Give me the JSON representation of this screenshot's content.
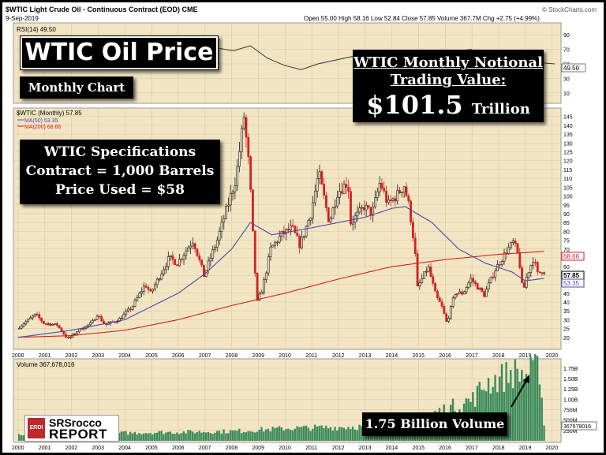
{
  "header": {
    "symbol_line": "$WTIC Light Crude Oil - Continuous Contract (EOD) CME",
    "date": "9-Sep-2019",
    "ohlc": "Open 55.00   High 58.16   Low 52.84   Close 57.85   Volume 367.7M   Chg +2.75 (+4.99%)",
    "credit": "© StockCharts.com"
  },
  "rsi_panel": {
    "label": "RSI(14) 49.50",
    "current_value": "49.50",
    "ticks": [
      "90",
      "70",
      "50",
      "30",
      "10"
    ],
    "series": [
      60,
      72,
      68,
      75,
      58,
      48,
      42,
      50,
      55,
      60,
      57,
      54,
      52,
      55,
      61,
      66,
      70,
      64,
      60,
      58,
      52,
      50
    ]
  },
  "price_panel": {
    "legend_main": "$WTIC (Monthly) 57.85",
    "legend_ma50": "MA(50) 53.35",
    "legend_ma200": "MA(200) 68.66",
    "tags": {
      "ma200": "68.66",
      "close": "57.85",
      "ma50": "53.35"
    }
  },
  "volume_panel": {
    "label": "Volume 367,678,016",
    "ticks": [
      "1.75B",
      "1.50B",
      "1.25B",
      "1.00B",
      "750M",
      "500M",
      "250M"
    ],
    "current_tag": "367678016"
  },
  "annotations": {
    "title": "WTIC Oil Price",
    "subtitle": "Monthly Chart",
    "spec_line1": "WTIC Specifications",
    "spec_line2": "Contract = 1,000 Barrels",
    "spec_line3": "Price Used = $58",
    "value_line1": "WTIC  Monthly Notional",
    "value_line2": "Trading Value:",
    "value_amount": "$101.5",
    "value_unit": "Trillion",
    "volume_note": "1.75 Billion Volume"
  },
  "logo": {
    "badge": "ERDI",
    "line1": "SRSrocco",
    "line2": "REPORT"
  },
  "colors": {
    "background": "#f2e5c4",
    "grid": "#d8c59a",
    "up": "#1d1d1d",
    "down": "#d42020",
    "ma50": "#4a4aa8",
    "ma200": "#d02020",
    "volume": "#3a8a5a",
    "rsi_line": "#333333"
  },
  "chart_data": {
    "type": "candlestick",
    "x_labels": [
      "2000",
      "2001",
      "2002",
      "2003",
      "2004",
      "2005",
      "2006",
      "2007",
      "2008",
      "2009",
      "2010",
      "2011",
      "2012",
      "2013",
      "2014",
      "2015",
      "2016",
      "2017",
      "2018",
      "2019",
      "2020"
    ],
    "y_ticks": [
      145,
      140,
      135,
      130,
      125,
      120,
      115,
      110,
      105,
      100,
      95,
      90,
      85,
      80,
      75,
      70,
      65,
      60,
      55,
      50,
      45,
      40,
      35,
      30,
      25,
      20
    ],
    "ylim": [
      15,
      148
    ],
    "x_range": [
      2000,
      2020.1
    ],
    "price_keypoints": [
      [
        2000.0,
        25
      ],
      [
        2000.7,
        33
      ],
      [
        2001.0,
        28
      ],
      [
        2001.5,
        27
      ],
      [
        2001.9,
        19
      ],
      [
        2002.3,
        24
      ],
      [
        2002.8,
        28
      ],
      [
        2003.0,
        33
      ],
      [
        2003.3,
        27
      ],
      [
        2003.8,
        30
      ],
      [
        2004.3,
        37
      ],
      [
        2004.8,
        50
      ],
      [
        2005.0,
        45
      ],
      [
        2005.7,
        65
      ],
      [
        2006.0,
        62
      ],
      [
        2006.6,
        75
      ],
      [
        2007.0,
        55
      ],
      [
        2007.5,
        75
      ],
      [
        2007.9,
        95
      ],
      [
        2008.2,
        110
      ],
      [
        2008.5,
        145
      ],
      [
        2008.7,
        115
      ],
      [
        2008.9,
        60
      ],
      [
        2009.0,
        40
      ],
      [
        2009.2,
        48
      ],
      [
        2009.5,
        70
      ],
      [
        2009.9,
        78
      ],
      [
        2010.3,
        82
      ],
      [
        2010.6,
        72
      ],
      [
        2011.0,
        90
      ],
      [
        2011.3,
        113
      ],
      [
        2011.7,
        85
      ],
      [
        2012.0,
        102
      ],
      [
        2012.4,
        108
      ],
      [
        2012.5,
        85
      ],
      [
        2012.8,
        90
      ],
      [
        2013.0,
        94
      ],
      [
        2013.3,
        90
      ],
      [
        2013.6,
        108
      ],
      [
        2013.9,
        95
      ],
      [
        2014.2,
        100
      ],
      [
        2014.5,
        106
      ],
      [
        2014.7,
        93
      ],
      [
        2014.9,
        70
      ],
      [
        2015.0,
        48
      ],
      [
        2015.4,
        60
      ],
      [
        2015.7,
        43
      ],
      [
        2015.9,
        38
      ],
      [
        2016.1,
        28
      ],
      [
        2016.4,
        45
      ],
      [
        2016.7,
        45
      ],
      [
        2017.0,
        53
      ],
      [
        2017.5,
        44
      ],
      [
        2017.9,
        58
      ],
      [
        2018.3,
        68
      ],
      [
        2018.6,
        74
      ],
      [
        2018.8,
        65
      ],
      [
        2018.95,
        45
      ],
      [
        2019.1,
        55
      ],
      [
        2019.35,
        65
      ],
      [
        2019.5,
        56
      ],
      [
        2019.7,
        57.85
      ]
    ],
    "ma50_keypoints": [
      [
        2000.0,
        20
      ],
      [
        2002.0,
        24
      ],
      [
        2004.0,
        30
      ],
      [
        2006.0,
        45
      ],
      [
        2007.0,
        56
      ],
      [
        2008.0,
        70
      ],
      [
        2008.7,
        85
      ],
      [
        2009.5,
        78
      ],
      [
        2011.0,
        82
      ],
      [
        2012.0,
        85
      ],
      [
        2013.0,
        88
      ],
      [
        2014.0,
        93
      ],
      [
        2014.5,
        94
      ],
      [
        2015.5,
        85
      ],
      [
        2016.5,
        70
      ],
      [
        2017.5,
        62
      ],
      [
        2018.5,
        57
      ],
      [
        2019.0,
        52
      ],
      [
        2019.7,
        53.35
      ]
    ],
    "ma200_keypoints": [
      [
        2000.0,
        20
      ],
      [
        2002.0,
        21
      ],
      [
        2004.0,
        24
      ],
      [
        2006.0,
        30
      ],
      [
        2008.0,
        38
      ],
      [
        2010.0,
        45
      ],
      [
        2012.0,
        53
      ],
      [
        2014.0,
        60
      ],
      [
        2016.0,
        64
      ],
      [
        2018.0,
        67
      ],
      [
        2019.7,
        68.66
      ]
    ],
    "volume_ylim": [
      0,
      1900000000
    ],
    "volume_keypoints": [
      [
        2000.0,
        150000000
      ],
      [
        2004.0,
        190000000
      ],
      [
        2008.0,
        230000000
      ],
      [
        2010.0,
        300000000
      ],
      [
        2012.0,
        330000000
      ],
      [
        2014.0,
        360000000
      ],
      [
        2015.0,
        560000000
      ],
      [
        2016.0,
        760000000
      ],
      [
        2017.0,
        1000000000
      ],
      [
        2017.5,
        1400000000
      ],
      [
        2018.0,
        1500000000
      ],
      [
        2018.5,
        1650000000
      ],
      [
        2019.0,
        1600000000
      ],
      [
        2019.5,
        1750000000
      ],
      [
        2019.7,
        367678016
      ]
    ]
  }
}
